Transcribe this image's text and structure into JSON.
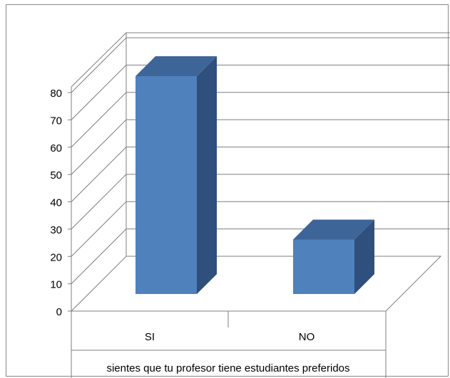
{
  "chart_data": {
    "type": "bar",
    "categories": [
      "SI",
      "NO"
    ],
    "values": [
      80,
      20
    ],
    "title": "",
    "xlabel": "sientes  que tu profesor tiene  estudiantes preferidos",
    "ylabel": "",
    "ylim": [
      0,
      80
    ],
    "yticks": [
      "0",
      "10",
      "20",
      "30",
      "40",
      "50",
      "60",
      "70",
      "80"
    ],
    "grid": true,
    "bar_3d": true,
    "colors": {
      "bar_front": "#4F81BD",
      "bar_side": "#2F4F7C",
      "bar_top": "#3E6597",
      "grid": "#7f7f7f"
    }
  }
}
